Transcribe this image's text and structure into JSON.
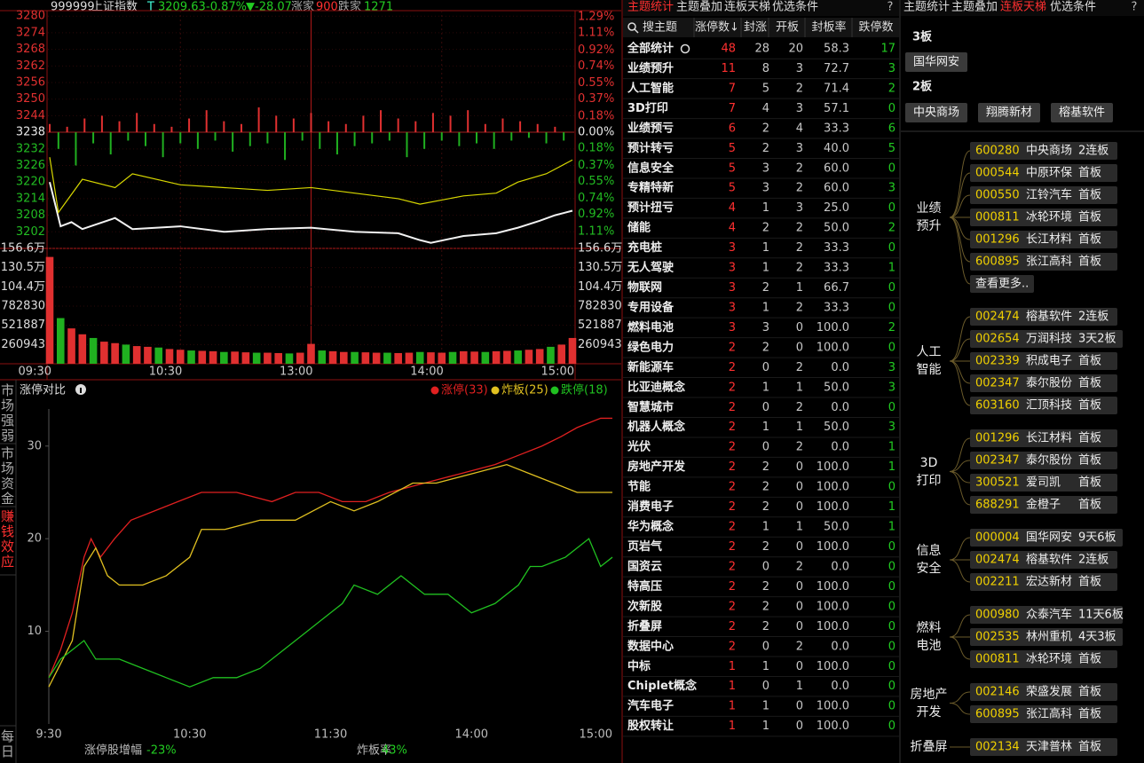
{
  "header": {
    "code": "999999",
    "name": "上证指数",
    "flag": "T",
    "price": "3209.63",
    "pct": "-0.87%",
    "change": "▼-28.07",
    "up_label": "涨家",
    "up_count": "900",
    "down_label": "跌家",
    "down_count": "1271"
  },
  "price_chart": {
    "type": "line",
    "ylim": [
      3196,
      3282
    ],
    "yticks": [
      3280,
      3274,
      3268,
      3262,
      3256,
      3250,
      3244,
      3238,
      3232,
      3226,
      3220,
      3214,
      3208,
      3202
    ],
    "y2lim": [
      -1.3,
      1.36
    ],
    "y2ticks": [
      {
        "value": 1.29,
        "label": "1.29%"
      },
      {
        "value": 1.11,
        "label": "1.11%"
      },
      {
        "value": 0.92,
        "label": "0.92%"
      },
      {
        "value": 0.74,
        "label": "0.74%"
      },
      {
        "value": 0.55,
        "label": "0.55%"
      },
      {
        "value": 0.37,
        "label": "0.37%"
      },
      {
        "value": 0.18,
        "label": "0.18%"
      },
      {
        "value": 0,
        "label": "0.00%"
      },
      {
        "value": -0.18,
        "label": "0.18%"
      },
      {
        "value": -0.37,
        "label": "0.37%"
      },
      {
        "value": -0.55,
        "label": "0.55%"
      },
      {
        "value": -0.74,
        "label": "0.74%"
      },
      {
        "value": -0.92,
        "label": "0.92%"
      },
      {
        "value": -1.11,
        "label": "1.11%"
      }
    ],
    "xlim": [
      0,
      240
    ],
    "xticks": [
      {
        "value": 0,
        "label": "09:30"
      },
      {
        "value": 60,
        "label": "10:30"
      },
      {
        "value": 120,
        "label": "13:00"
      },
      {
        "value": 180,
        "label": "14:00"
      },
      {
        "value": 240,
        "label": "15:00"
      }
    ],
    "series": [
      {
        "color": "#f2f2f2",
        "x": [
          0,
          5,
          10,
          15,
          30,
          38,
          60,
          80,
          100,
          120,
          140,
          160,
          170,
          175,
          190,
          205,
          215,
          225,
          232,
          240
        ],
        "values": [
          3220,
          3204,
          3205.5,
          3203,
          3207,
          3203,
          3204,
          3202,
          3203,
          3203.5,
          3202,
          3201.5,
          3199,
          3198,
          3200.5,
          3201.5,
          3203.5,
          3206,
          3208,
          3209.63
        ]
      },
      {
        "color": "#d8d800",
        "x": [
          0,
          4,
          15,
          30,
          38,
          60,
          100,
          120,
          140,
          160,
          170,
          190,
          205,
          215,
          228,
          240
        ],
        "values": [
          3229,
          3209,
          3221,
          3218,
          3223,
          3219,
          3217,
          3218,
          3216,
          3214,
          3212,
          3215,
          3216,
          3220,
          3223,
          3228
        ]
      }
    ],
    "fluct_bars": {
      "up_color": "#e03030",
      "down_color": "#20b020",
      "x": [
        0,
        4,
        8,
        12,
        16,
        20,
        24,
        28,
        32,
        36,
        40,
        44,
        48,
        52,
        56,
        60,
        64,
        68,
        72,
        76,
        80,
        84,
        88,
        92,
        96,
        100,
        104,
        108,
        112,
        116,
        120,
        124,
        128,
        132,
        136,
        140,
        144,
        148,
        152,
        156,
        160,
        164,
        168,
        172,
        176,
        180,
        184,
        188,
        192,
        196,
        200,
        204,
        208,
        212,
        216,
        220,
        224,
        228,
        232,
        236
      ],
      "values": [
        3,
        -6,
        2,
        -12,
        5,
        -4,
        6,
        -8,
        4,
        -3,
        7,
        -5,
        3,
        -9,
        2,
        -4,
        5,
        -6,
        8,
        -3,
        4,
        -7,
        3,
        -5,
        9,
        -4,
        6,
        -10,
        5,
        -3,
        7,
        -6,
        4,
        -8,
        3,
        -5,
        6,
        -4,
        8,
        -3,
        5,
        -9,
        4,
        -6,
        7,
        -3,
        6,
        -5,
        8,
        -4,
        3,
        -6,
        5,
        -3,
        4,
        -2,
        3,
        -4,
        2,
        -3
      ]
    }
  },
  "volume_chart": {
    "type": "bar",
    "up_color": "#e03030",
    "down_color": "#20b020",
    "ylim": [
      0,
      1565658
    ],
    "yticks": [
      {
        "value": 1565658,
        "label": "156.6万"
      },
      {
        "value": 1304715,
        "label": "130.5万"
      },
      {
        "value": 1043772,
        "label": "104.4万"
      },
      782830,
      521887,
      260943
    ],
    "x": [
      0,
      5,
      10,
      15,
      20,
      25,
      30,
      35,
      40,
      45,
      50,
      55,
      60,
      65,
      70,
      75,
      80,
      85,
      90,
      95,
      100,
      105,
      110,
      115,
      120,
      125,
      130,
      135,
      140,
      145,
      150,
      155,
      160,
      165,
      170,
      175,
      180,
      185,
      190,
      195,
      200,
      205,
      210,
      215,
      220,
      225,
      230,
      235,
      240
    ],
    "values": [
      1450000,
      620000,
      480000,
      400000,
      350000,
      300000,
      280000,
      260000,
      240000,
      230000,
      220000,
      200000,
      190000,
      180000,
      175000,
      170000,
      160000,
      165000,
      155000,
      150000,
      150000,
      145000,
      140000,
      150000,
      270000,
      180000,
      170000,
      160000,
      160000,
      155000,
      150000,
      150000,
      145000,
      150000,
      160000,
      155000,
      150000,
      160000,
      170000,
      165000,
      160000,
      170000,
      175000,
      180000,
      190000,
      200000,
      230000,
      260000,
      350000
    ]
  },
  "limit_chart": {
    "type": "line",
    "title": "涨停对比",
    "ylim": [
      0,
      34
    ],
    "yticks": [
      10,
      20,
      30
    ],
    "xlim": [
      0,
      240
    ],
    "xticks": [
      {
        "value": 0,
        "label": "9:30"
      },
      {
        "value": 60,
        "label": "10:30"
      },
      {
        "value": 120,
        "label": "11:30"
      },
      {
        "value": 180,
        "label": "14:00"
      },
      {
        "value": 240,
        "label": "15:00"
      }
    ],
    "series": [
      {
        "name": "涨停(33)",
        "color": "#e02020",
        "x": [
          0,
          5,
          10,
          15,
          18,
          22,
          28,
          35,
          45,
          55,
          65,
          80,
          95,
          105,
          115,
          125,
          135,
          145,
          160,
          175,
          190,
          200,
          210,
          218,
          225,
          235,
          240
        ],
        "values": [
          5,
          8,
          12,
          18,
          20,
          18,
          20,
          22,
          23,
          24,
          25,
          25,
          24,
          25,
          25,
          24,
          24,
          25,
          26,
          27,
          28,
          29,
          30,
          31,
          32,
          33,
          33
        ]
      },
      {
        "name": "炸板(25)",
        "color": "#e0c020",
        "x": [
          0,
          10,
          15,
          20,
          25,
          30,
          40,
          50,
          60,
          65,
          75,
          90,
          105,
          120,
          130,
          140,
          155,
          165,
          180,
          195,
          205,
          215,
          225,
          235,
          240
        ],
        "values": [
          4,
          9,
          17,
          19,
          16,
          15,
          15,
          16,
          18,
          21,
          21,
          22,
          22,
          24,
          23,
          24,
          26,
          26,
          27,
          28,
          27,
          26,
          25,
          25,
          25
        ]
      },
      {
        "name": "跌停(18)",
        "color": "#20c020",
        "x": [
          0,
          5,
          10,
          15,
          20,
          30,
          40,
          50,
          60,
          70,
          80,
          90,
          100,
          110,
          115,
          125,
          130,
          140,
          150,
          160,
          170,
          180,
          190,
          200,
          205,
          210,
          220,
          230,
          235,
          240
        ],
        "values": [
          5,
          7,
          8,
          9,
          7,
          7,
          6,
          5,
          4,
          5,
          5,
          6,
          8,
          10,
          11,
          13,
          15,
          14,
          16,
          14,
          14,
          12,
          13,
          15,
          17,
          17,
          18,
          20,
          17,
          18
        ]
      }
    ],
    "footer": [
      {
        "label": "涨停股增幅",
        "value": "-23%"
      },
      {
        "label": "炸板率",
        "value": "43%"
      }
    ]
  },
  "side_tabs": [
    "市场强弱",
    "市场资金",
    "赚钱效应"
  ],
  "active_side_tab": 2,
  "bottom_tab": "每日",
  "theme_table": {
    "tabs": [
      "主题统计",
      "主题叠加",
      "连板天梯",
      "优选条件"
    ],
    "active_tab": 0,
    "help": "?",
    "search": "搜主题",
    "columns": [
      "涨停数↓",
      "封涨",
      "开板",
      "封板率",
      "跌停数"
    ],
    "rows": [
      [
        "全部统计",
        "48",
        "28",
        "20",
        "58.3",
        "17"
      ],
      [
        "业绩预升",
        "11",
        "8",
        "3",
        "72.7",
        "3"
      ],
      [
        "人工智能",
        "7",
        "5",
        "2",
        "71.4",
        "2"
      ],
      [
        "3D打印",
        "7",
        "4",
        "3",
        "57.1",
        "0"
      ],
      [
        "业绩预亏",
        "6",
        "2",
        "4",
        "33.3",
        "6"
      ],
      [
        "预计转亏",
        "5",
        "2",
        "3",
        "40.0",
        "5"
      ],
      [
        "信息安全",
        "5",
        "3",
        "2",
        "60.0",
        "0"
      ],
      [
        "专精特新",
        "5",
        "3",
        "2",
        "60.0",
        "3"
      ],
      [
        "预计扭亏",
        "4",
        "1",
        "3",
        "25.0",
        "0"
      ],
      [
        "储能",
        "4",
        "2",
        "2",
        "50.0",
        "2"
      ],
      [
        "充电桩",
        "3",
        "1",
        "2",
        "33.3",
        "0"
      ],
      [
        "无人驾驶",
        "3",
        "1",
        "2",
        "33.3",
        "1"
      ],
      [
        "物联网",
        "3",
        "2",
        "1",
        "66.7",
        "0"
      ],
      [
        "专用设备",
        "3",
        "1",
        "2",
        "33.3",
        "0"
      ],
      [
        "燃料电池",
        "3",
        "3",
        "0",
        "100.0",
        "2"
      ],
      [
        "绿色电力",
        "2",
        "2",
        "0",
        "100.0",
        "0"
      ],
      [
        "新能源车",
        "2",
        "0",
        "2",
        "0.0",
        "3"
      ],
      [
        "比亚迪概念",
        "2",
        "1",
        "1",
        "50.0",
        "3"
      ],
      [
        "智慧城市",
        "2",
        "0",
        "2",
        "0.0",
        "0"
      ],
      [
        "机器人概念",
        "2",
        "1",
        "1",
        "50.0",
        "3"
      ],
      [
        "光伏",
        "2",
        "0",
        "2",
        "0.0",
        "1"
      ],
      [
        "房地产开发",
        "2",
        "2",
        "0",
        "100.0",
        "1"
      ],
      [
        "节能",
        "2",
        "2",
        "0",
        "100.0",
        "0"
      ],
      [
        "消费电子",
        "2",
        "2",
        "0",
        "100.0",
        "1"
      ],
      [
        "华为概念",
        "2",
        "1",
        "1",
        "50.0",
        "1"
      ],
      [
        "页岩气",
        "2",
        "2",
        "0",
        "100.0",
        "0"
      ],
      [
        "国资云",
        "2",
        "0",
        "2",
        "0.0",
        "0"
      ],
      [
        "特高压",
        "2",
        "2",
        "0",
        "100.0",
        "0"
      ],
      [
        "次新股",
        "2",
        "2",
        "0",
        "100.0",
        "0"
      ],
      [
        "折叠屏",
        "2",
        "2",
        "0",
        "100.0",
        "0"
      ],
      [
        "数据中心",
        "2",
        "0",
        "2",
        "0.0",
        "0"
      ],
      [
        "中标",
        "1",
        "1",
        "0",
        "100.0",
        "0"
      ],
      [
        "Chiplet概念",
        "1",
        "0",
        "1",
        "0.0",
        "0"
      ],
      [
        "汽车电子",
        "1",
        "1",
        "0",
        "100.0",
        "0"
      ],
      [
        "股权转让",
        "1",
        "1",
        "0",
        "100.0",
        "0"
      ]
    ]
  },
  "ladder": {
    "tabs": [
      "主题统计",
      "主题叠加",
      "连板天梯",
      "优选条件"
    ],
    "active_tab": 2,
    "help": "?",
    "levels": [
      {
        "label": "3板",
        "stocks": [
          "国华网安"
        ]
      },
      {
        "label": "2板",
        "stocks": [
          "中央商场",
          "翔腾新材",
          "榕基软件"
        ]
      }
    ],
    "groups": [
      {
        "theme": "业绩预升",
        "stocks": [
          [
            "600280",
            "中央商场",
            "2连板"
          ],
          [
            "000544",
            "中原环保",
            "首板"
          ],
          [
            "000550",
            "江铃汽车",
            "首板"
          ],
          [
            "000811",
            "冰轮环境",
            "首板"
          ],
          [
            "001296",
            "长江材料",
            "首板"
          ],
          [
            "600895",
            "张江高科",
            "首板"
          ]
        ],
        "more": "查看更多.."
      },
      {
        "theme": "人工智能",
        "stocks": [
          [
            "002474",
            "榕基软件",
            "2连板"
          ],
          [
            "002654",
            "万润科技",
            "3天2板"
          ],
          [
            "002339",
            "积成电子",
            "首板"
          ],
          [
            "002347",
            "泰尔股份",
            "首板"
          ],
          [
            "603160",
            "汇顶科技",
            "首板"
          ]
        ]
      },
      {
        "theme": "3D打印",
        "stocks": [
          [
            "001296",
            "长江材料",
            "首板"
          ],
          [
            "002347",
            "泰尔股份",
            "首板"
          ],
          [
            "300521",
            "爱司凯",
            "首板"
          ],
          [
            "688291",
            "金橙子",
            "首板"
          ]
        ]
      },
      {
        "theme": "信息安全",
        "stocks": [
          [
            "000004",
            "国华网安",
            "9天6板"
          ],
          [
            "002474",
            "榕基软件",
            "2连板"
          ],
          [
            "002211",
            "宏达新材",
            "首板"
          ]
        ]
      },
      {
        "theme": "燃料电池",
        "stocks": [
          [
            "000980",
            "众泰汽车",
            "11天6板"
          ],
          [
            "002535",
            "林州重机",
            "4天3板"
          ],
          [
            "000811",
            "冰轮环境",
            "首板"
          ]
        ]
      },
      {
        "theme": "房地产开发",
        "stocks": [
          [
            "002146",
            "荣盛发展",
            "首板"
          ],
          [
            "600895",
            "张江高科",
            "首板"
          ]
        ]
      },
      {
        "theme": "折叠屏",
        "stocks": [
          [
            "002134",
            "天津普林",
            "首板"
          ]
        ]
      }
    ]
  }
}
